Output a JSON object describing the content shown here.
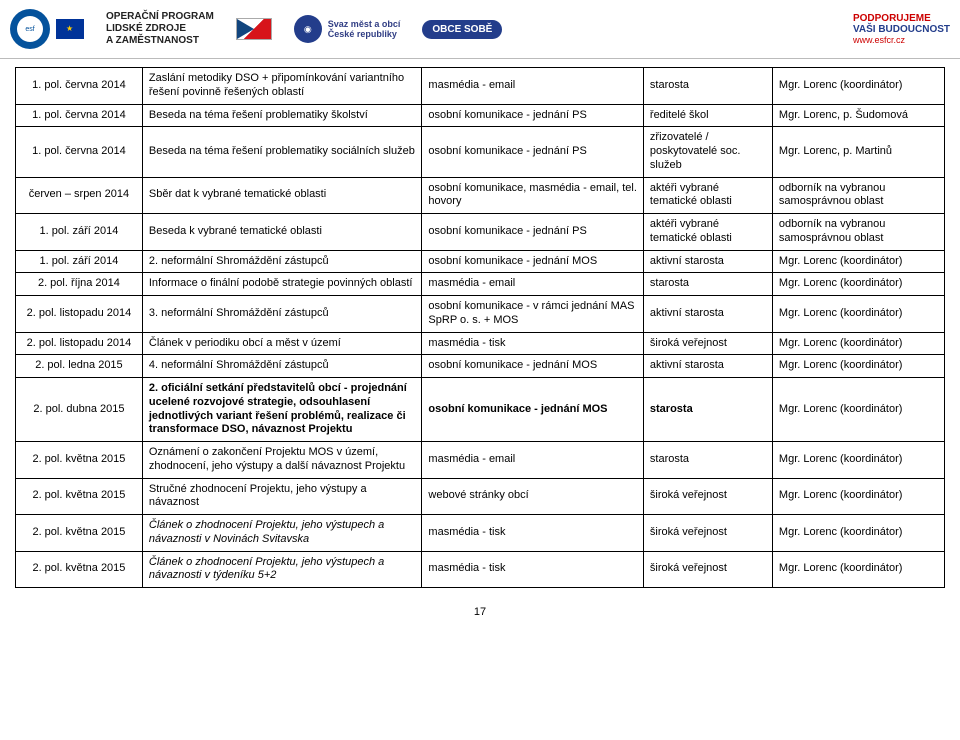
{
  "header": {
    "esf_inner": "esf",
    "op_line1": "OPERAČNÍ PROGRAM",
    "op_line2": "LIDSKÉ ZDROJE",
    "op_line3": "A ZAMĚSTNANOST",
    "smo_line1": "Svaz měst a obcí",
    "smo_line2": "České republiky",
    "obce": "OBCE SOBĚ",
    "podp1": "PODPORUJEME",
    "podp2": "VAŠI BUDOUCNOST",
    "site": "www.esfcr.cz"
  },
  "rows": [
    {
      "c1": "1. pol. června 2014",
      "c2": "Zaslání metodiky DSO + připomínkování variantního řešení povinně řešených oblastí",
      "c3": "masmédia - email",
      "c4": "starosta",
      "c5": "Mgr. Lorenc (koordinátor)"
    },
    {
      "c1": "1. pol. června 2014",
      "c2": "Beseda na téma řešení problematiky školství",
      "c3": "osobní komunikace - jednání PS",
      "c4": "ředitelé škol",
      "c5": "Mgr. Lorenc, p. Šudomová"
    },
    {
      "c1": "1. pol. června 2014",
      "c2": "Beseda na téma řešení problematiky sociálních služeb",
      "c3": "osobní komunikace - jednání PS",
      "c4": "zřizovatelé / poskytovatelé soc. služeb",
      "c5": "Mgr. Lorenc, p. Martinů"
    },
    {
      "c1": "červen – srpen 2014",
      "c2": "Sběr dat k vybrané tematické oblasti",
      "c3": "osobní komunikace, masmédia - email, tel. hovory",
      "c4": "aktéři vybrané tematické oblasti",
      "c5": "odborník na vybranou samosprávnou oblast"
    },
    {
      "c1": "1. pol. září 2014",
      "c2": "Beseda k vybrané tematické oblasti",
      "c3": "osobní komunikace - jednání PS",
      "c4": "aktéři vybrané tematické oblasti",
      "c5": "odborník na vybranou samosprávnou oblast"
    },
    {
      "c1": "1. pol. září 2014",
      "c2": "2. neformální Shromáždění zástupců",
      "c3": "osobní komunikace - jednání MOS",
      "c4": "aktivní starosta",
      "c5": "Mgr. Lorenc (koordinátor)"
    },
    {
      "c1": "2. pol. října 2014",
      "c2": "Informace o finální podobě strategie povinných oblastí",
      "c3": "masmédia - email",
      "c4": "starosta",
      "c5": "Mgr. Lorenc (koordinátor)"
    },
    {
      "c1": "2. pol. listopadu 2014",
      "c2": "3. neformální Shromáždění zástupců",
      "c3": "osobní komunikace - v rámci jednání MAS SpRP o. s. + MOS",
      "c4": "aktivní starosta",
      "c5": "Mgr. Lorenc (koordinátor)"
    },
    {
      "c1": "2. pol. listopadu 2014",
      "c2": "Článek v periodiku obcí a měst v území",
      "c3": "masmédia - tisk",
      "c4": "široká veřejnost",
      "c5": "Mgr. Lorenc (koordinátor)"
    },
    {
      "c1": "2. pol. ledna 2015",
      "c2": "4. neformální Shromáždění zástupců",
      "c3": "osobní komunikace - jednání MOS",
      "c4": "aktivní starosta",
      "c5": "Mgr. Lorenc (koordinátor)"
    },
    {
      "c1": "2. pol. dubna 2015",
      "c2": "2. oficiální setkání představitelů obcí - projednání ucelené rozvojové strategie, odsouhlasení jednotlivých variant řešení problémů, realizace či transformace DSO, návaznost Projektu",
      "c3": "osobní komunikace - jednání MOS",
      "c4": "starosta",
      "c5": "Mgr. Lorenc (koordinátor)"
    },
    {
      "c1": "2. pol. května 2015",
      "c2": "Oznámení o zakončení Projektu MOS v území, zhodnocení, jeho výstupy a další návaznost Projektu",
      "c3": "masmédia - email",
      "c4": "starosta",
      "c5": "Mgr. Lorenc (koordinátor)"
    },
    {
      "c1": "2. pol. května 2015",
      "c2": "Stručné zhodnocení Projektu, jeho výstupy a návaznost",
      "c3": "webové stránky obcí",
      "c4": "široká veřejnost",
      "c5": "Mgr. Lorenc (koordinátor)"
    },
    {
      "c1": "2. pol. května 2015",
      "c2": "Článek o zhodnocení Projektu, jeho výstupech a návaznosti v Novinách Svitavska",
      "c3": "masmédia - tisk",
      "c4": "široká veřejnost",
      "c5": "Mgr. Lorenc (koordinátor)"
    },
    {
      "c1": "2. pol. května 2015",
      "c2": "Článek o zhodnocení Projektu, jeho výstupech a návaznosti v týdeníku 5+2",
      "c3": "masmédia - tisk",
      "c4": "široká veřejnost",
      "c5": "Mgr. Lorenc (koordinátor)"
    }
  ],
  "italic_rows": [
    13,
    14
  ],
  "bold_row": 10,
  "page_number": "17"
}
